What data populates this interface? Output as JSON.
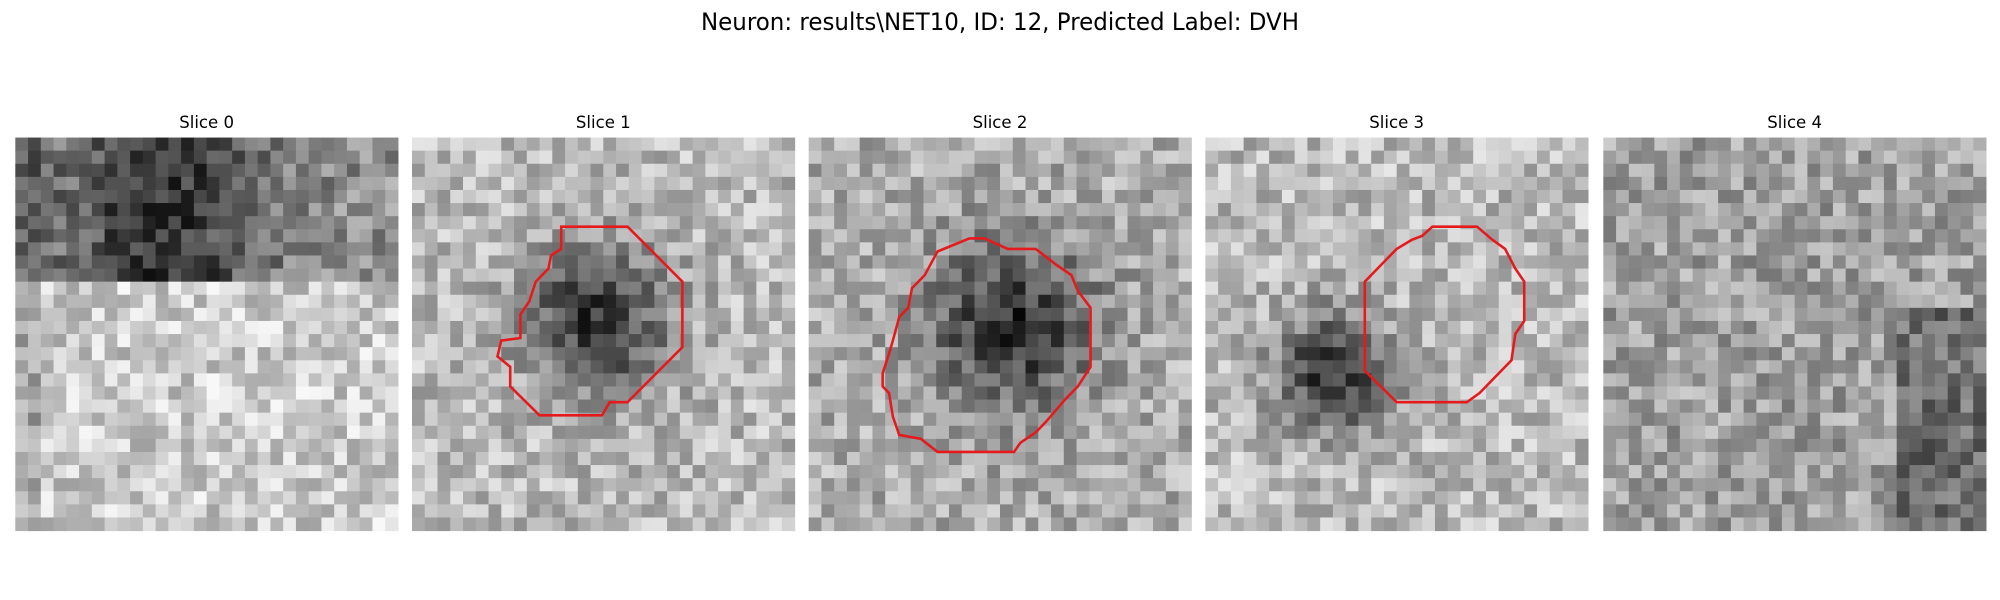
{
  "title": "Neuron: results\\NET10, ID: 12, Predicted Label: DVH",
  "panels": [
    {
      "title": "Slice 0"
    },
    {
      "title": "Slice 1"
    },
    {
      "title": "Slice 2"
    },
    {
      "title": "Slice 3"
    },
    {
      "title": "Slice 4"
    }
  ]
}
